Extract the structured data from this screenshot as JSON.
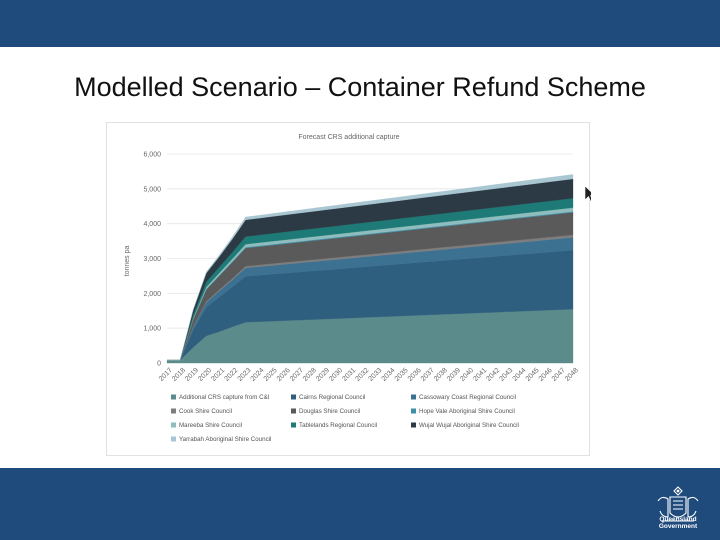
{
  "slide": {
    "title": "Modelled Scenario – Container Refund Scheme"
  },
  "branding": {
    "line1": "Queensland",
    "line2": "Government"
  },
  "colors": {
    "band": "#1f4a7c",
    "cursor": "#222222"
  },
  "chart_data": {
    "type": "area",
    "stacked": true,
    "title": "Forecast CRS additional capture",
    "ylabel": "tonnes pa",
    "xlabel": "",
    "ylim": [
      0,
      6000
    ],
    "yticks": [
      0,
      1000,
      2000,
      3000,
      4000,
      5000,
      6000
    ],
    "ytick_labels": [
      "0",
      "1,000",
      "2,000",
      "3,000",
      "4,000",
      "5,000",
      "6,000"
    ],
    "grid": true,
    "legend_position": "bottom",
    "categories": [
      "2017",
      "2018",
      "2019",
      "2020",
      "2021",
      "2022",
      "2023",
      "2024",
      "2025",
      "2026",
      "2027",
      "2028",
      "2029",
      "2030",
      "2031",
      "2032",
      "2033",
      "2034",
      "2035",
      "2036",
      "2037",
      "2038",
      "2039",
      "2040",
      "2041",
      "2042",
      "2043",
      "2044",
      "2045",
      "2046",
      "2047",
      "2048"
    ],
    "series": [
      {
        "name": "Additional CRS capture from C&I",
        "color": "#5b8b8b",
        "values": [
          80,
          80,
          450,
          780,
          900,
          1040,
          1170,
          1185,
          1200,
          1215,
          1230,
          1245,
          1260,
          1275,
          1290,
          1305,
          1320,
          1335,
          1350,
          1365,
          1380,
          1395,
          1410,
          1425,
          1440,
          1455,
          1470,
          1485,
          1500,
          1515,
          1530,
          1545
        ]
      },
      {
        "name": "Cairns Regional Council",
        "color": "#2f5f7e",
        "values": [
          0,
          0,
          500,
          820,
          1000,
          1150,
          1320,
          1335,
          1350,
          1365,
          1380,
          1395,
          1410,
          1425,
          1440,
          1455,
          1470,
          1485,
          1500,
          1515,
          1530,
          1545,
          1560,
          1575,
          1590,
          1605,
          1620,
          1635,
          1650,
          1665,
          1680,
          1695
        ]
      },
      {
        "name": "Cassowary Coast Regional Council",
        "color": "#3d7191",
        "values": [
          0,
          0,
          80,
          140,
          170,
          200,
          240,
          245,
          250,
          255,
          260,
          265,
          270,
          275,
          280,
          285,
          290,
          295,
          300,
          305,
          310,
          315,
          320,
          325,
          330,
          335,
          340,
          345,
          350,
          355,
          360,
          365
        ]
      },
      {
        "name": "Cook Shire Council",
        "color": "#7d7d7d",
        "values": [
          0,
          0,
          20,
          30,
          35,
          40,
          50,
          51,
          52,
          53,
          54,
          55,
          56,
          57,
          58,
          59,
          60,
          61,
          62,
          63,
          64,
          65,
          66,
          67,
          68,
          69,
          70,
          71,
          72,
          73,
          74,
          75
        ]
      },
      {
        "name": "Douglas Shire Council",
        "color": "#5a5a5a",
        "values": [
          0,
          0,
          200,
          340,
          400,
          470,
          520,
          525,
          530,
          535,
          540,
          545,
          550,
          555,
          560,
          565,
          570,
          575,
          580,
          585,
          590,
          595,
          600,
          605,
          610,
          615,
          620,
          625,
          630,
          635,
          640,
          645
        ]
      },
      {
        "name": "Hope Vale Aboriginal Shire Council",
        "color": "#3f8fa8",
        "values": [
          0,
          0,
          10,
          15,
          18,
          20,
          25,
          25,
          25,
          25,
          25,
          25,
          25,
          25,
          25,
          25,
          25,
          25,
          25,
          25,
          25,
          25,
          25,
          25,
          25,
          25,
          25,
          25,
          25,
          25,
          25,
          25
        ]
      },
      {
        "name": "Mareeba Shire Council",
        "color": "#8fbdbd",
        "values": [
          0,
          0,
          30,
          55,
          65,
          75,
          85,
          86,
          87,
          88,
          89,
          90,
          91,
          92,
          93,
          94,
          95,
          96,
          97,
          98,
          99,
          100,
          101,
          102,
          103,
          104,
          105,
          106,
          107,
          108,
          109,
          110
        ]
      },
      {
        "name": "Tablelands Regional Council",
        "color": "#1d7a76",
        "values": [
          0,
          0,
          90,
          150,
          170,
          190,
          220,
          222,
          224,
          226,
          228,
          230,
          232,
          234,
          236,
          238,
          240,
          242,
          244,
          246,
          248,
          250,
          252,
          254,
          256,
          258,
          260,
          262,
          264,
          266,
          268,
          270
        ]
      },
      {
        "name": "Wujal Wujal Aboriginal Shire Council",
        "color": "#2b3a44",
        "values": [
          0,
          0,
          140,
          250,
          300,
          380,
          480,
          483,
          486,
          489,
          492,
          495,
          498,
          501,
          504,
          507,
          510,
          513,
          516,
          519,
          522,
          525,
          528,
          531,
          534,
          537,
          540,
          543,
          546,
          549,
          552,
          555
        ]
      },
      {
        "name": "Yarrabah Aboriginal Shire Council",
        "color": "#a9c7d2",
        "values": [
          0,
          0,
          20,
          35,
          45,
          60,
          80,
          82,
          84,
          86,
          88,
          90,
          92,
          94,
          96,
          98,
          100,
          102,
          104,
          106,
          108,
          110,
          112,
          114,
          116,
          118,
          120,
          122,
          124,
          126,
          128,
          130
        ]
      }
    ]
  }
}
